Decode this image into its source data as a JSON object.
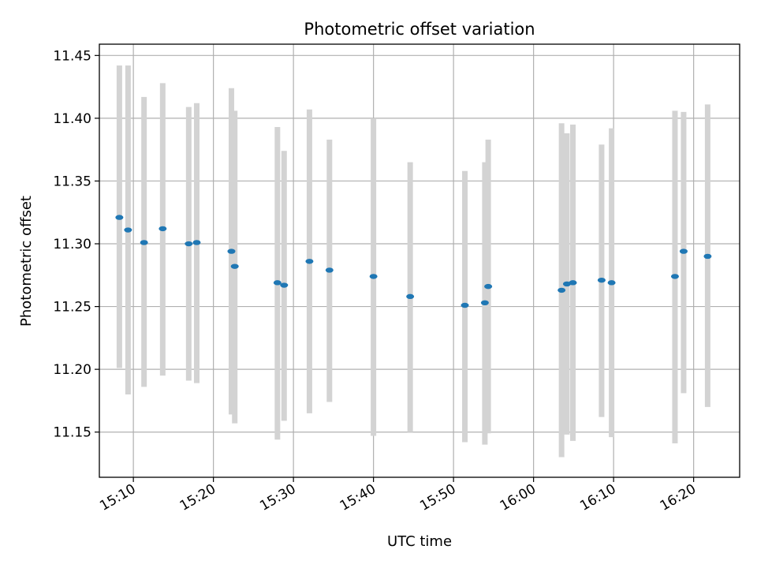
{
  "chart_data": {
    "type": "scatter",
    "title": "Photometric offset variation",
    "xlabel": "UTC time",
    "ylabel": "Photometric offset",
    "grid": true,
    "xlim": [
      "15:05:45",
      "16:25:45"
    ],
    "ylim": [
      11.114,
      11.459
    ],
    "x_ticks": [
      "15:10",
      "15:20",
      "15:30",
      "15:40",
      "15:50",
      "16:00",
      "16:10",
      "16:20"
    ],
    "y_ticks": [
      "11.15",
      "11.20",
      "11.25",
      "11.30",
      "11.35",
      "11.40",
      "11.45"
    ],
    "colors": {
      "points": "#1f77b4",
      "errorbars": "#d3d3d3",
      "grid": "#b0b0b0"
    },
    "series": [
      {
        "points": [
          {
            "x": "15:08:15",
            "y": 11.321,
            "ylow": 11.201,
            "yhigh": 11.442
          },
          {
            "x": "15:09:20",
            "y": 11.311,
            "ylow": 11.18,
            "yhigh": 11.442
          },
          {
            "x": "15:11:20",
            "y": 11.301,
            "ylow": 11.186,
            "yhigh": 11.417
          },
          {
            "x": "15:13:40",
            "y": 11.312,
            "ylow": 11.195,
            "yhigh": 11.428
          },
          {
            "x": "15:16:55",
            "y": 11.3,
            "ylow": 11.191,
            "yhigh": 11.409
          },
          {
            "x": "15:17:55",
            "y": 11.301,
            "ylow": 11.189,
            "yhigh": 11.412
          },
          {
            "x": "15:22:15",
            "y": 11.294,
            "ylow": 11.164,
            "yhigh": 11.424
          },
          {
            "x": "15:22:40",
            "y": 11.282,
            "ylow": 11.157,
            "yhigh": 11.406
          },
          {
            "x": "15:28:00",
            "y": 11.269,
            "ylow": 11.144,
            "yhigh": 11.393
          },
          {
            "x": "15:28:50",
            "y": 11.267,
            "ylow": 11.159,
            "yhigh": 11.374
          },
          {
            "x": "15:32:00",
            "y": 11.286,
            "ylow": 11.165,
            "yhigh": 11.407
          },
          {
            "x": "15:34:30",
            "y": 11.279,
            "ylow": 11.174,
            "yhigh": 11.383
          },
          {
            "x": "15:40:00",
            "y": 11.274,
            "ylow": 11.147,
            "yhigh": 11.4
          },
          {
            "x": "15:44:35",
            "y": 11.258,
            "ylow": 11.15,
            "yhigh": 11.365
          },
          {
            "x": "15:51:25",
            "y": 11.251,
            "ylow": 11.142,
            "yhigh": 11.358
          },
          {
            "x": "15:53:55",
            "y": 11.253,
            "ylow": 11.14,
            "yhigh": 11.365
          },
          {
            "x": "15:54:20",
            "y": 11.266,
            "ylow": 11.149,
            "yhigh": 11.383
          },
          {
            "x": "16:03:30",
            "y": 11.263,
            "ylow": 11.13,
            "yhigh": 11.396
          },
          {
            "x": "16:04:10",
            "y": 11.268,
            "ylow": 11.148,
            "yhigh": 11.388
          },
          {
            "x": "16:04:55",
            "y": 11.269,
            "ylow": 11.143,
            "yhigh": 11.395
          },
          {
            "x": "16:08:30",
            "y": 11.271,
            "ylow": 11.162,
            "yhigh": 11.379
          },
          {
            "x": "16:09:45",
            "y": 11.269,
            "ylow": 11.146,
            "yhigh": 11.392
          },
          {
            "x": "16:17:40",
            "y": 11.274,
            "ylow": 11.141,
            "yhigh": 11.406
          },
          {
            "x": "16:18:45",
            "y": 11.294,
            "ylow": 11.181,
            "yhigh": 11.405
          },
          {
            "x": "16:21:45",
            "y": 11.29,
            "ylow": 11.17,
            "yhigh": 11.411
          }
        ]
      }
    ]
  }
}
